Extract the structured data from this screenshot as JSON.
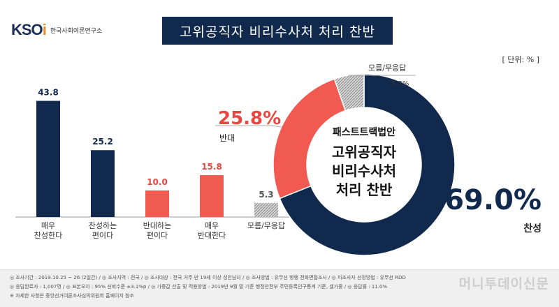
{
  "header": {
    "logo_mark": "KSOi",
    "logo_text": "한국사회여론연구소",
    "title": "고위공직자 비리수사처 처리 찬반",
    "unit": "[ 단위: % ]"
  },
  "colors": {
    "navy": "#10294d",
    "red": "#f05a50",
    "gray_pattern": "#a9a9a9",
    "label_red": "#e8473f"
  },
  "chart_data": [
    {
      "type": "bar",
      "categories": [
        "매우\n찬성한다",
        "찬성하는\n편이다",
        "반대하는\n편이다",
        "매우\n반대한다",
        "모름/무응답"
      ],
      "values": [
        43.8,
        25.2,
        10.0,
        15.8,
        5.3
      ],
      "value_labels": [
        "43.8",
        "25.2",
        "10.0",
        "15.8",
        "5.3"
      ],
      "bar_colors": [
        "navy",
        "navy",
        "red",
        "red",
        "pattern"
      ],
      "ylim": [
        0,
        50
      ]
    },
    {
      "type": "pie",
      "style": "donut",
      "center_text": [
        "패스트트랙법안",
        "고위공직자",
        "비리수사처",
        "처리 찬반"
      ],
      "slices": [
        {
          "name": "찬성",
          "value": 69.0,
          "label": "69.0%",
          "color": "navy"
        },
        {
          "name": "반대",
          "value": 25.8,
          "label": "25.8%",
          "color": "red"
        },
        {
          "name": "모름/무응답",
          "value": 5.3,
          "label": "5.3%",
          "color": "pattern"
        }
      ]
    }
  ],
  "footer": {
    "line1": "◎ 조사기간 : 2019.10.25 ~ 26 (2일간)  / ◎ 조사지역 : 전국 / ◎ 조사대상 : 전국 거주 만 19세 이상 성인남녀 / ◎ 조사방법 : 유무선 병행 전화면접조사 / ◎ 피조사자 선정방법 : 유무선 RDD",
    "line2": "◎ 응답완료자 : 1,007명 / ◎ 표본오차 : 95% 신뢰수준 ±3.1%p / ◎ 가중값 산출 및 적용방법 : 2019년 9월 말 기준 행정안전부 주민등록인구통계 기준, 셀가중 / ◎ 응답률 : 11.0%",
    "line3": "※ 자세한 사항은 중앙선거여론조사심의위원회 홈페이지 참조",
    "watermark": "머니투데이신문"
  }
}
